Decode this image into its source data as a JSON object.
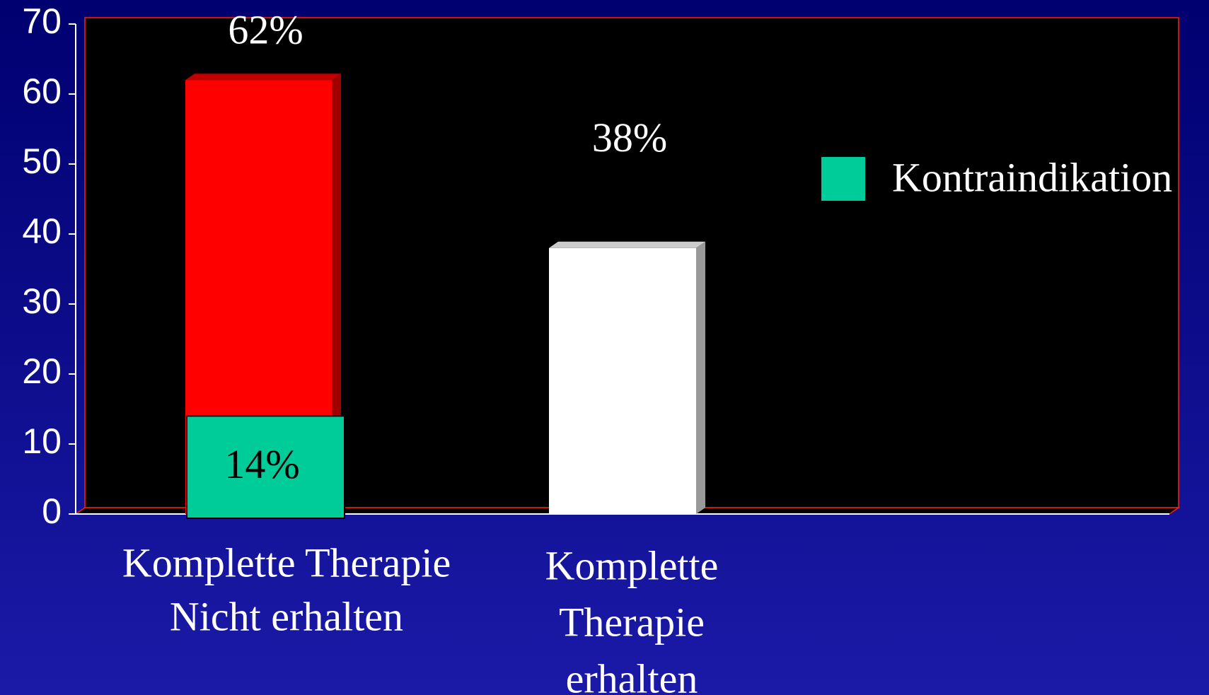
{
  "chart_data": {
    "type": "bar",
    "categories": [
      [
        "Komplette Therapie",
        "Nicht erhalten"
      ],
      [
        "Komplette",
        "Therapie",
        "erhalten"
      ]
    ],
    "series": [
      {
        "colors": [
          "#ff0000",
          "#ffffff"
        ],
        "values": [
          62,
          38
        ],
        "value_labels": [
          "62%",
          "38%"
        ]
      },
      {
        "name": "Kontraindikation",
        "color": "#00cc99",
        "values": [
          14,
          null
        ],
        "value_labels": [
          "14%",
          null
        ]
      }
    ],
    "ylim": [
      0,
      70
    ],
    "yticks": [
      0,
      10,
      20,
      30,
      40,
      50,
      60,
      70
    ],
    "legend": "right"
  }
}
